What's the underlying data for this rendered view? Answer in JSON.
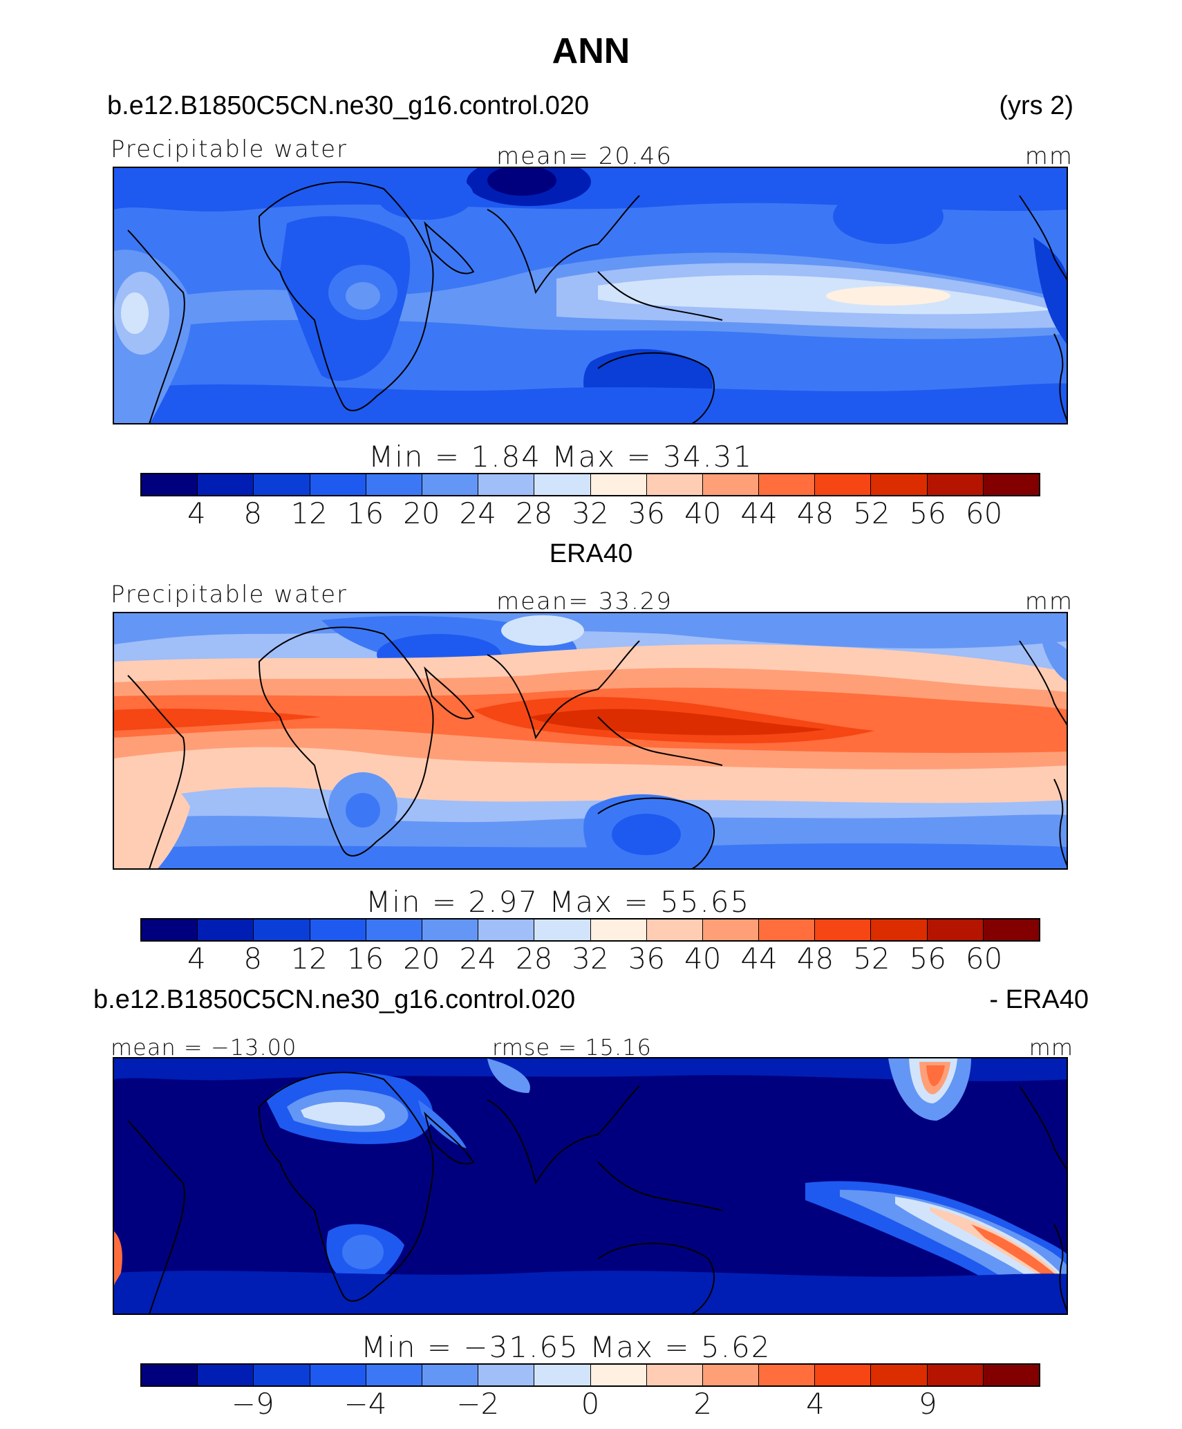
{
  "figure": {
    "title": "ANN"
  },
  "colors": [
    "#00007f",
    "#001eb4",
    "#0a3ed7",
    "#1e5af0",
    "#3c78f5",
    "#6496f5",
    "#a0bef8",
    "#d2e4fb",
    "#fff0e1",
    "#ffcdb4",
    "#ff9f78",
    "#ff6e3c",
    "#f54614",
    "#dc2d00",
    "#b41400",
    "#820000"
  ],
  "panels": [
    {
      "header_left": "b.e12.B1850C5CN.ne30_g16.control.020",
      "header_right": "(yrs 2)",
      "label_left": "Precipitable water",
      "label_center": "mean=   20.46",
      "label_right": "mm",
      "minmax": "Min  =     1.84  Max  =    34.31",
      "colorbar_ticks": [
        "4",
        "8",
        "12",
        "16",
        "20",
        "24",
        "28",
        "32",
        "36",
        "40",
        "44",
        "48",
        "52",
        "56",
        "60"
      ],
      "field": "model"
    },
    {
      "header_center": "ERA40",
      "label_left": "Precipitable water",
      "label_center": "mean=   33.29",
      "label_right": "mm",
      "minmax": "Min  =     2.97  Max  =    55.65",
      "colorbar_ticks": [
        "4",
        "8",
        "12",
        "16",
        "20",
        "24",
        "28",
        "32",
        "36",
        "40",
        "44",
        "48",
        "52",
        "56",
        "60"
      ],
      "field": "obs"
    },
    {
      "header_left": "b.e12.B1850C5CN.ne30_g16.control.020",
      "header_right": "- ERA40",
      "label_left": "mean  =  −13.00",
      "label_center": "rmse  =   15.16",
      "label_right": "mm",
      "minmax": "Min  =  −31.65  Max  =     5.62",
      "colorbar_ticks": [
        "−9",
        "−4",
        "−2",
        "0",
        "2",
        "4",
        "9"
      ],
      "field": "diff"
    }
  ]
}
